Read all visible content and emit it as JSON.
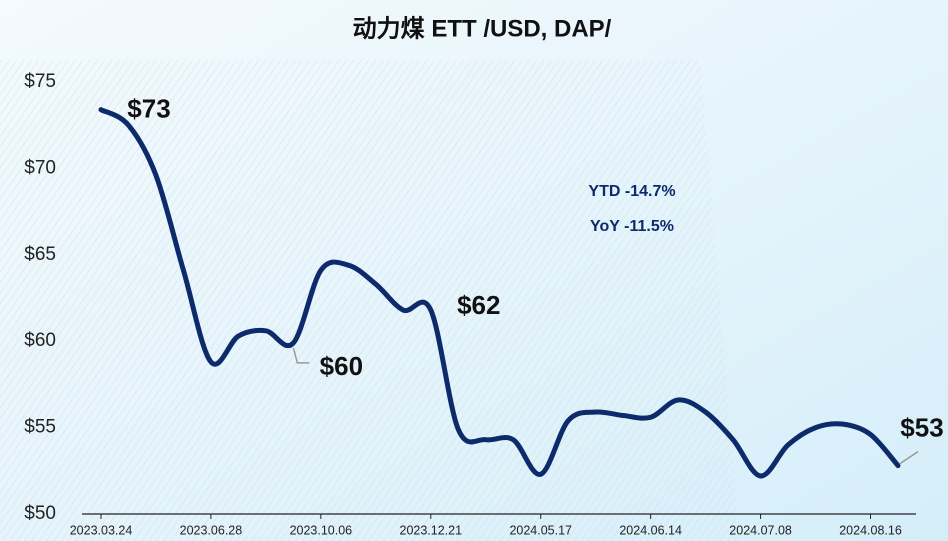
{
  "chart_data": {
    "type": "line",
    "title": "动力煤 ETT /USD, DAP/",
    "categories": [
      "2023.03.24",
      null,
      null,
      null,
      "2023.06.28",
      null,
      null,
      null,
      "2023.10.06",
      null,
      null,
      null,
      "2023.12.21",
      null,
      null,
      null,
      "2024.05.17",
      null,
      null,
      null,
      "2024.06.14",
      null,
      null,
      null,
      "2024.07.08",
      null,
      null,
      null,
      "2024.08.16",
      null
    ],
    "series": [
      {
        "name": "动力煤 ETT",
        "color": "#0d2a6b",
        "values": [
          73.4,
          72.5,
          69.6,
          64.1,
          58.8,
          60.3,
          60.6,
          59.9,
          64.1,
          64.4,
          63.3,
          61.8,
          61.8,
          54.9,
          54.3,
          54.3,
          52.3,
          55.4,
          55.9,
          55.7,
          55.6,
          56.6,
          55.9,
          54.3,
          52.2,
          54.0,
          55.0,
          55.2,
          54.6,
          52.8
        ],
        "value_labels": [
          "$73",
          null,
          null,
          null,
          null,
          null,
          null,
          "$60",
          null,
          null,
          null,
          null,
          "$62",
          null,
          null,
          null,
          null,
          null,
          null,
          null,
          null,
          null,
          null,
          null,
          null,
          null,
          null,
          null,
          null,
          "$53"
        ]
      }
    ],
    "annotations": [
      "YTD -14.7%",
      "YoY -11.5%"
    ],
    "ylim": [
      50,
      75
    ],
    "yticks": [
      {
        "value": 50,
        "label": "$50"
      },
      {
        "value": 55,
        "label": "$55"
      },
      {
        "value": 60,
        "label": "$60"
      },
      {
        "value": 65,
        "label": "$65"
      },
      {
        "value": 70,
        "label": "$70"
      },
      {
        "value": 75,
        "label": "$75"
      }
    ],
    "grid": false
  }
}
